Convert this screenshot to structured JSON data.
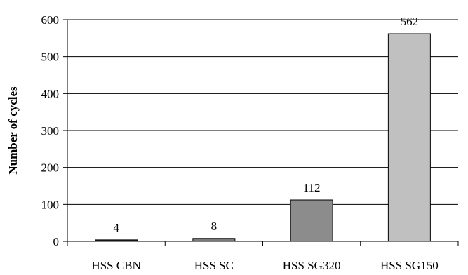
{
  "chart_data": {
    "type": "bar",
    "categories": [
      "HSS CBN",
      "HSS SC",
      "HSS SG320",
      "HSS SG150"
    ],
    "values": [
      4,
      8,
      112,
      562
    ],
    "data_labels": [
      "4",
      "8",
      "112",
      "562"
    ],
    "colors": [
      "#202020",
      "#7a7a7a",
      "#8c8c8c",
      "#c0c0c0"
    ],
    "title": "",
    "xlabel": "",
    "ylabel": "Number of cycles",
    "ylim": [
      0,
      600
    ],
    "yticks": [
      0,
      100,
      200,
      300,
      400,
      500,
      600
    ],
    "ytick_labels": [
      "0",
      "100",
      "200",
      "300",
      "400",
      "500",
      "600"
    ],
    "grid": true,
    "legend": "none"
  }
}
